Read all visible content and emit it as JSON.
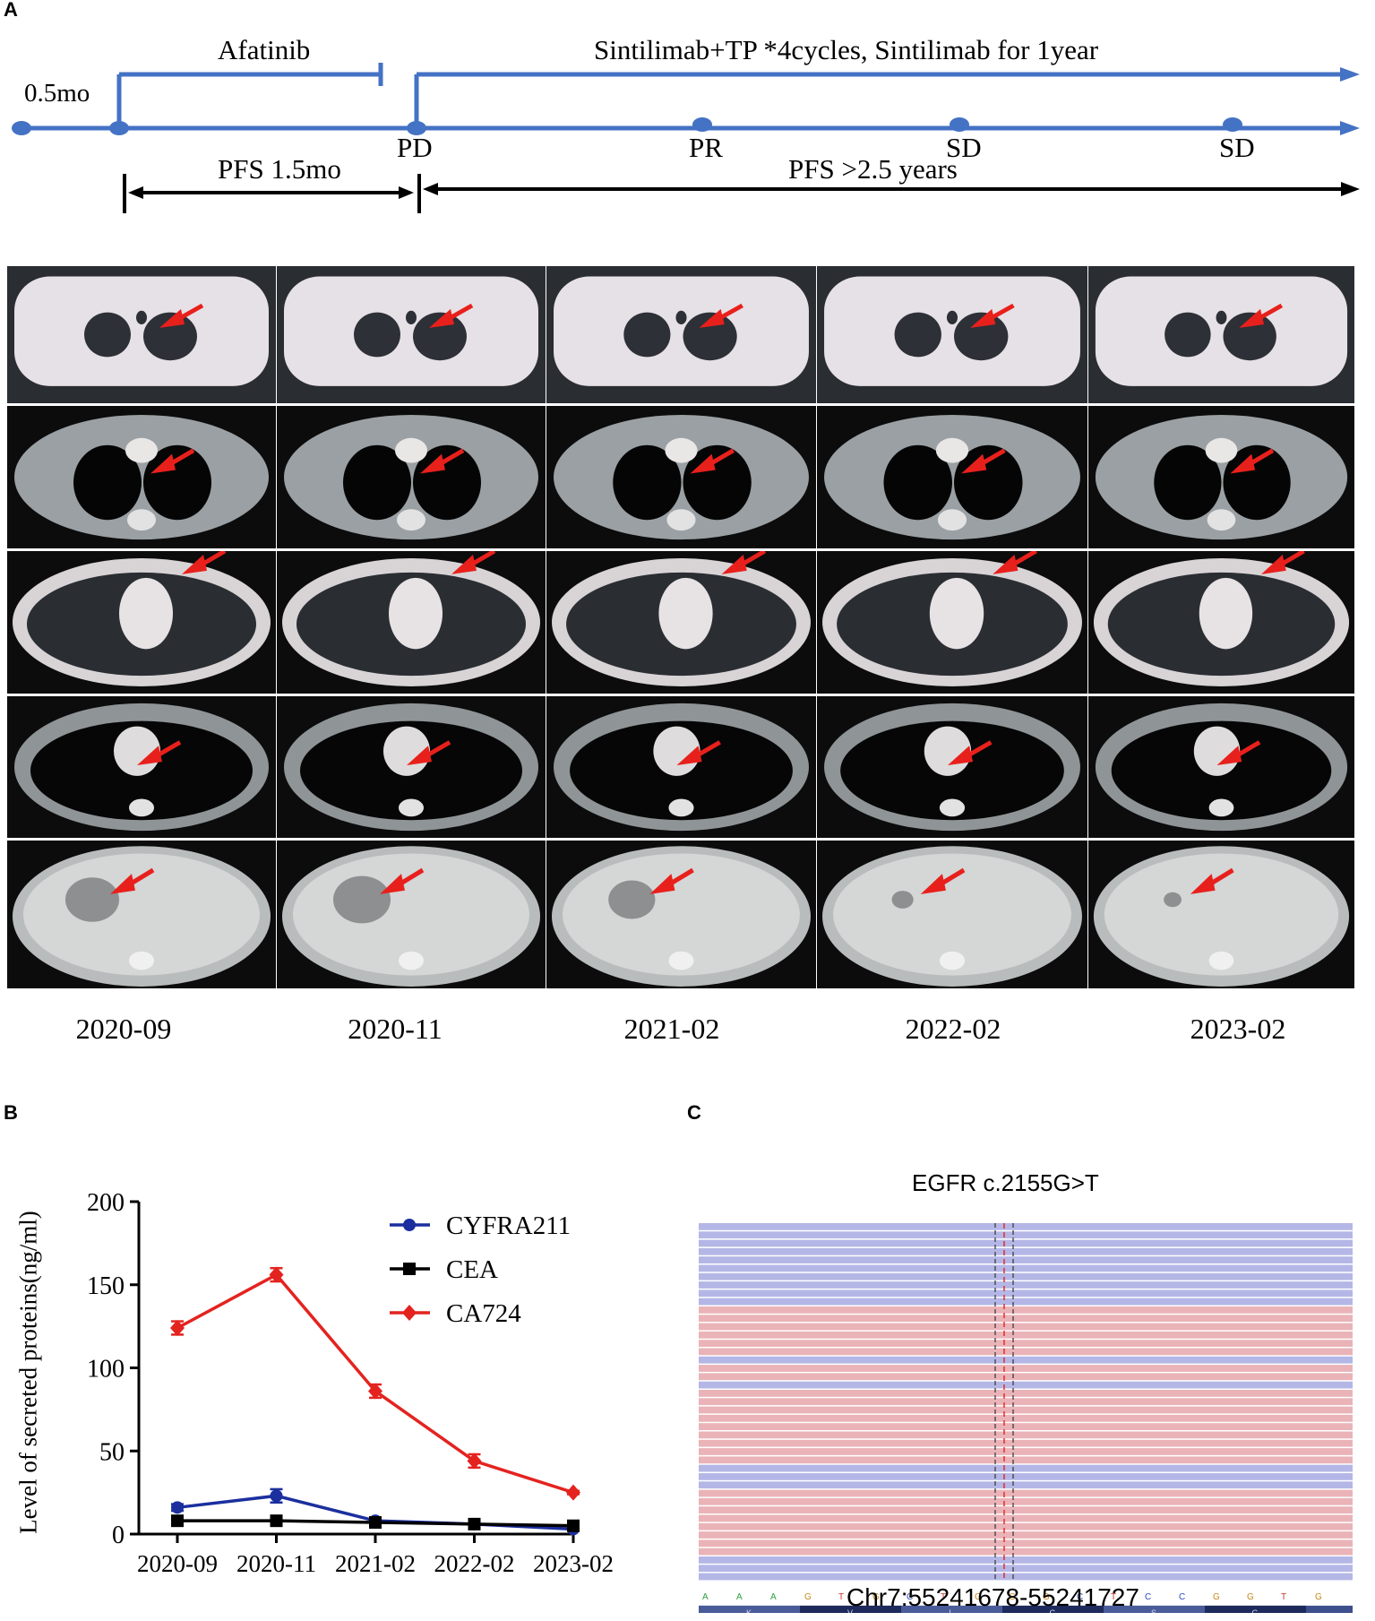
{
  "panels": {
    "a": "A",
    "b": "B",
    "c": "C"
  },
  "timeline": {
    "start_interval": "0.5mo",
    "drug1": "Afatinib",
    "drug2": "Sintilimab+TP *4cycles, Sintilimab for 1year",
    "events": [
      "PD",
      "PR",
      "SD",
      "SD"
    ],
    "pfs1": "PFS 1.5mo",
    "pfs2": "PFS >2.5 years",
    "line_color": "#4472c4"
  },
  "ct_dates": [
    "2020-09",
    "2020-11",
    "2021-02",
    "2022-02",
    "2023-02"
  ],
  "ct_rows": [
    "brain-window",
    "mediastinal-window-upper",
    "lung-window",
    "mediastinal-window-hilum",
    "liver-window"
  ],
  "ct_arrow_color": "#e8201c",
  "chart_data": {
    "type": "line",
    "title": "",
    "xlabel": "",
    "ylabel": "Level of secreted proteins(ng/ml)",
    "categories": [
      "2020-09",
      "2020-11",
      "2021-02",
      "2022-02",
      "2023-02"
    ],
    "ylim": [
      0,
      200
    ],
    "yticks": [
      0,
      50,
      100,
      150,
      200
    ],
    "legend_position": "top-right",
    "series": [
      {
        "name": "CYFRA211",
        "values": [
          16,
          23,
          8,
          6,
          3
        ],
        "errors": [
          2,
          4,
          2,
          2,
          1
        ],
        "color": "#1b2f9e",
        "marker": "circle"
      },
      {
        "name": "CEA",
        "values": [
          8,
          8,
          7,
          6,
          5
        ],
        "errors": [
          1,
          1,
          1,
          1,
          1
        ],
        "color": "#000000",
        "marker": "square"
      },
      {
        "name": "CA724",
        "values": [
          124,
          156,
          86,
          44,
          25
        ],
        "errors": [
          4,
          4,
          4,
          4,
          1
        ],
        "color": "#e4231f",
        "marker": "diamond"
      }
    ]
  },
  "sequencing": {
    "title": "EGFR c.2155G>T",
    "bases": [
      "A",
      "A",
      "A",
      "G",
      "T",
      "G",
      "C",
      "T",
      "G",
      "G",
      "G",
      "C",
      "T",
      "C",
      "C",
      "G",
      "G",
      "T",
      "G"
    ],
    "amino_acids": [
      "K",
      "V",
      "L",
      "G",
      "S",
      "G"
    ],
    "locus": "Chr7:55241678-55241727",
    "read_color_forward": "#b4b7e6",
    "read_color_reverse": "#eab3b8",
    "read_strands": [
      "f",
      "f",
      "f",
      "f",
      "f",
      "f",
      "f",
      "f",
      "f",
      "f",
      "r",
      "r",
      "r",
      "r",
      "r",
      "r",
      "f",
      "r",
      "r",
      "f",
      "r",
      "r",
      "r",
      "r",
      "r",
      "r",
      "r",
      "r",
      "r",
      "f",
      "f",
      "f",
      "r",
      "r",
      "r",
      "r",
      "r",
      "r",
      "r",
      "r",
      "f",
      "f",
      "f"
    ]
  }
}
